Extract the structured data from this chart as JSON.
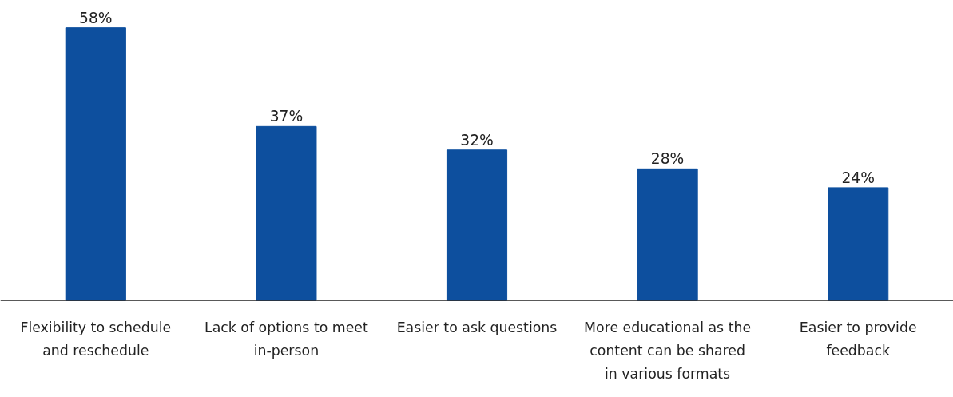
{
  "chart_data": {
    "type": "bar",
    "categories": [
      "Flexibility to schedule and reschedule",
      "Lack of options to meet in-person",
      "Easier to ask questions",
      "More educational as the content can be shared in various formats",
      "Easier to provide feedback"
    ],
    "values": [
      58,
      37,
      32,
      28,
      24
    ],
    "value_labels": [
      "58%",
      "37%",
      "32%",
      "28%",
      "24%"
    ],
    "color": "#0d4f9e"
  }
}
